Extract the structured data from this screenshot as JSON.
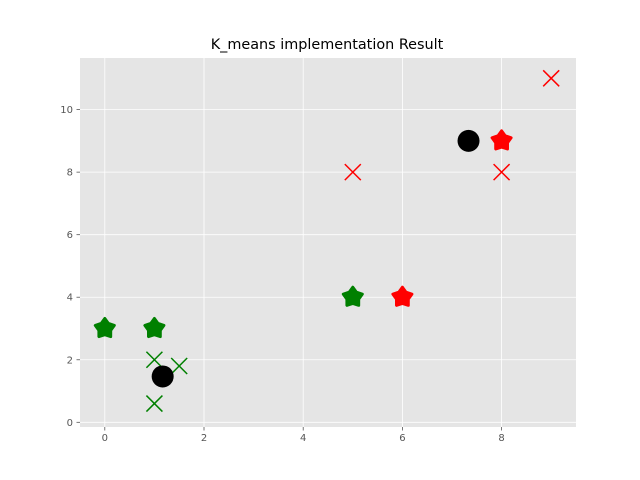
{
  "chart_data": {
    "type": "scatter",
    "title": "K_means implementation Result",
    "xlabel": "",
    "ylabel": "",
    "xlim": [
      -0.5,
      9.5
    ],
    "ylim": [
      -0.15,
      11.65
    ],
    "xticks": [
      0,
      2,
      4,
      6,
      8
    ],
    "yticks": [
      0,
      2,
      4,
      6,
      8,
      10
    ],
    "grid": true,
    "background": "#e5e5e5",
    "grid_color": "#ffffff",
    "series": [
      {
        "marker": "x",
        "color": "#008000",
        "points": [
          [
            1.0,
            2.0
          ],
          [
            1.5,
            1.8
          ],
          [
            1.0,
            0.6
          ]
        ]
      },
      {
        "marker": "x",
        "color": "#ff0000",
        "points": [
          [
            5.0,
            8.0
          ],
          [
            8.0,
            8.0
          ],
          [
            9.0,
            11.0
          ]
        ]
      },
      {
        "marker": "star",
        "color": "#008000",
        "points": [
          [
            0.0,
            3.0
          ],
          [
            1.0,
            3.0
          ],
          [
            5.0,
            4.0
          ]
        ]
      },
      {
        "marker": "star",
        "color": "#ff0000",
        "points": [
          [
            6.0,
            4.0
          ],
          [
            8.0,
            9.0
          ]
        ]
      },
      {
        "marker": "circle",
        "color": "#000000",
        "points": [
          [
            1.1667,
            1.4667
          ],
          [
            7.3333,
            9.0
          ]
        ]
      }
    ]
  }
}
